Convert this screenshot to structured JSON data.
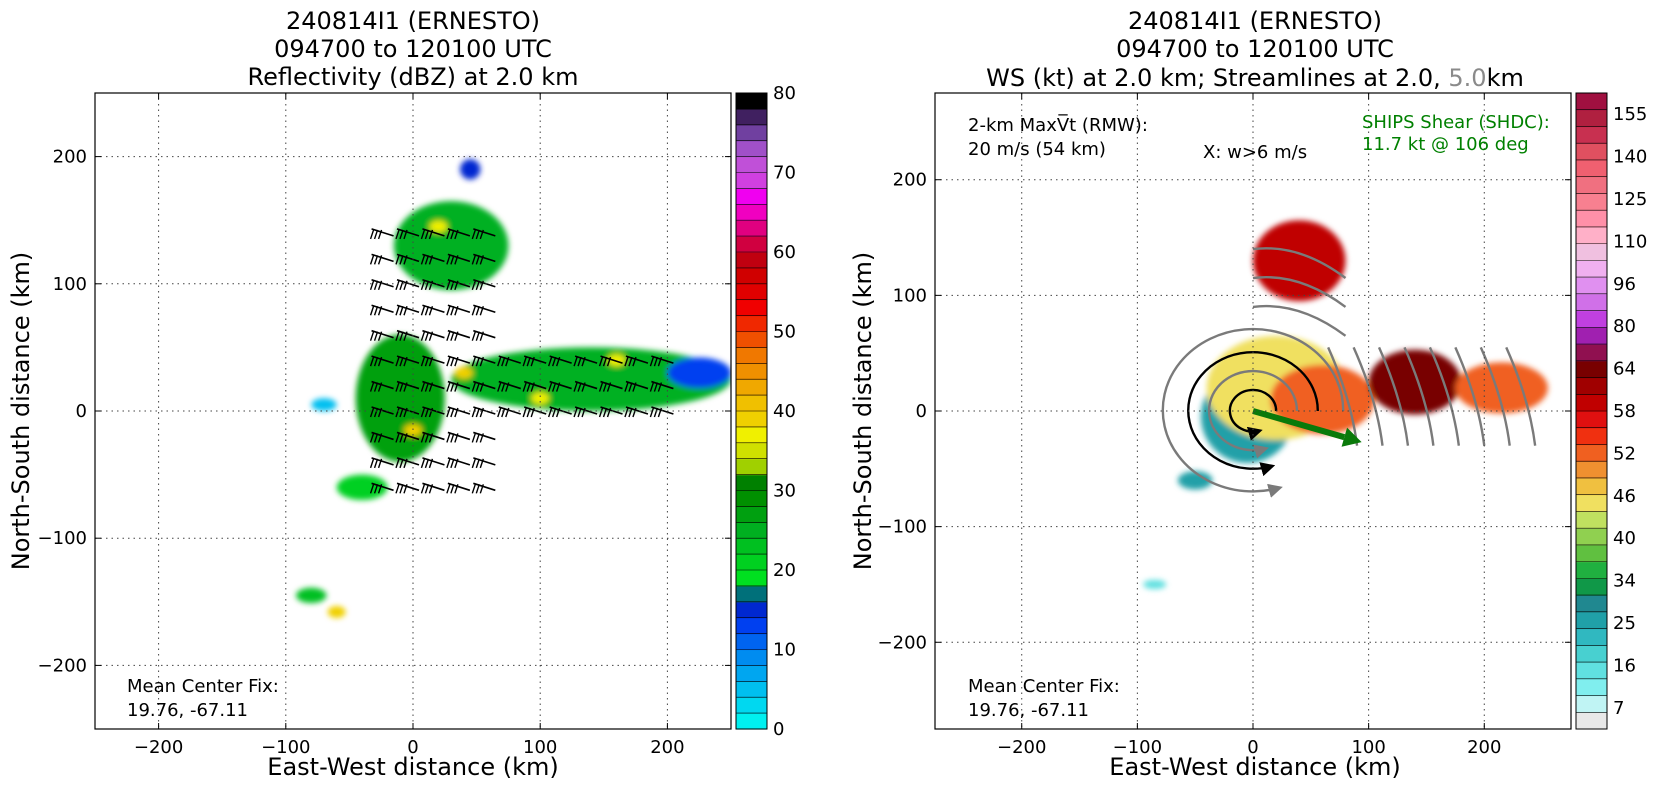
{
  "chart_data": [
    {
      "type": "heatmap",
      "title_lines": [
        "240814I1 (ERNESTO)",
        "094700 to 120100 UTC",
        "Reflectivity (dBZ) at 2.0 km"
      ],
      "xlabel": "East-West distance (km)",
      "ylabel": "North-South distance (km)",
      "xlim": [
        -250,
        250
      ],
      "ylim": [
        -250,
        250
      ],
      "xticks": [
        -200,
        -100,
        0,
        100,
        200
      ],
      "yticks": [
        -200,
        -100,
        0,
        100,
        200
      ],
      "xtick_labels": [
        "−200",
        "−100",
        "0",
        "100",
        "200"
      ],
      "ytick_labels": [
        "−200",
        "−100",
        "0",
        "100",
        "200"
      ],
      "grid": true,
      "annotation": {
        "line1": "Mean Center Fix:",
        "line2": "19.76, -67.11"
      },
      "colorbar": {
        "min": 0,
        "max": 80,
        "ticks": [
          0,
          10,
          20,
          30,
          40,
          50,
          60,
          70,
          80
        ],
        "colors": [
          "#00f0f0",
          "#00d8f0",
          "#00bff0",
          "#00a6f0",
          "#008cf0",
          "#0064f0",
          "#0040f0",
          "#0028d0",
          "#00707a",
          "#00e020",
          "#00d020",
          "#00c020",
          "#00b020",
          "#00a010",
          "#009000",
          "#008000",
          "#a0d000",
          "#d0e000",
          "#f0f000",
          "#f0d000",
          "#f0c000",
          "#f0a800",
          "#f09000",
          "#f07800",
          "#f05000",
          "#f02800",
          "#f00000",
          "#e00000",
          "#d00000",
          "#c00010",
          "#d00040",
          "#e00080",
          "#f000c0",
          "#f000f0",
          "#d040e0",
          "#c050d8",
          "#a050c8",
          "#7040a0",
          "#402060",
          "#000000"
        ]
      },
      "data": {
        "unit": "dBZ",
        "echo_regions": [
          {
            "x": -10,
            "y": 10,
            "rx": 35,
            "ry": 50,
            "dbz": 26
          },
          {
            "x": 30,
            "y": 130,
            "rx": 45,
            "ry": 35,
            "dbz": 24
          },
          {
            "x": 45,
            "y": 190,
            "rx": 8,
            "ry": 8,
            "dbz": 15
          },
          {
            "x": 140,
            "y": 25,
            "rx": 110,
            "ry": 25,
            "dbz": 24
          },
          {
            "x": 225,
            "y": 30,
            "rx": 25,
            "ry": 12,
            "dbz": 12
          },
          {
            "x": -40,
            "y": -60,
            "rx": 20,
            "ry": 10,
            "dbz": 20
          },
          {
            "x": -80,
            "y": -145,
            "rx": 12,
            "ry": 6,
            "dbz": 22
          },
          {
            "x": -70,
            "y": 5,
            "rx": 10,
            "ry": 5,
            "dbz": 5
          }
        ],
        "cores": [
          {
            "x": 40,
            "y": 30,
            "dbz": 38
          },
          {
            "x": 20,
            "y": 145,
            "dbz": 36
          },
          {
            "x": 0,
            "y": -15,
            "dbz": 38
          },
          {
            "x": 100,
            "y": 10,
            "dbz": 36
          },
          {
            "x": 160,
            "y": 40,
            "dbz": 36
          },
          {
            "x": -60,
            "y": -158,
            "dbz": 38
          }
        ]
      }
    },
    {
      "type": "heatmap",
      "title_lines": [
        "240814I1 (ERNESTO)",
        "094700 to 120100 UTC"
      ],
      "title_line3": {
        "part1": "WS (kt) at 2.0 km; Streamlines at 2.0, ",
        "part2": "5.0",
        "part3": "km"
      },
      "xlabel": "East-West distance (km)",
      "ylabel": "North-South distance (km)",
      "xlim": [
        -275,
        275
      ],
      "ylim": [
        -275,
        275
      ],
      "xticks": [
        -200,
        -100,
        0,
        100,
        200
      ],
      "yticks": [
        -200,
        -100,
        0,
        100,
        200
      ],
      "xtick_labels": [
        "−200",
        "−100",
        "0",
        "100",
        "200"
      ],
      "ytick_labels": [
        "−200",
        "−100",
        "0",
        "100",
        "200"
      ],
      "grid": true,
      "annotations": {
        "maxvt_line1": "2-km MaxV̅t (RMW):",
        "maxvt_line2": "20 m/s (54 km)",
        "w_label": "X: w>6 m/s",
        "shear_line1": "SHIPS Shear (SHDC):",
        "shear_line2": "11.7 kt @ 106 deg",
        "center_fix_line1": "Mean Center Fix:",
        "center_fix_line2": "19.76, -67.11"
      },
      "shear_vector": {
        "speed_kt": 11.7,
        "direction_deg": 106
      },
      "colorbar": {
        "ticks": [
          7,
          16,
          25,
          34,
          40,
          46,
          52,
          58,
          64,
          80,
          96,
          110,
          125,
          140,
          155
        ],
        "colors": [
          "#e8e8e8",
          "#c0f4f4",
          "#80eeee",
          "#60e0e0",
          "#48d0d0",
          "#30b8c0",
          "#20a0a8",
          "#208890",
          "#109848",
          "#20b040",
          "#60c040",
          "#90d050",
          "#c0e060",
          "#f0e060",
          "#f0c040",
          "#f09030",
          "#f06020",
          "#f03010",
          "#e01010",
          "#c00000",
          "#a00000",
          "#780000",
          "#901050",
          "#a020b0",
          "#c040e0",
          "#d070e8",
          "#e090f0",
          "#f0b0f0",
          "#f0c0e0",
          "#ffb0c8",
          "#ff90a8",
          "#f88090",
          "#f07080",
          "#f06070",
          "#e05060",
          "#c83050",
          "#b02040",
          "#a01040"
        ]
      },
      "data": {
        "unit": "kt",
        "wind_regions": [
          {
            "x": -5,
            "y": -5,
            "rx": 40,
            "ry": 40,
            "kt": 25
          },
          {
            "x": 20,
            "y": 20,
            "rx": 60,
            "ry": 45,
            "kt": 46
          },
          {
            "x": 60,
            "y": 10,
            "rx": 45,
            "ry": 30,
            "kt": 55
          },
          {
            "x": 40,
            "y": 130,
            "rx": 40,
            "ry": 35,
            "kt": 60
          },
          {
            "x": 140,
            "y": 25,
            "rx": 40,
            "ry": 28,
            "kt": 70
          },
          {
            "x": 215,
            "y": 20,
            "rx": 40,
            "ry": 22,
            "kt": 56
          },
          {
            "x": -50,
            "y": -60,
            "rx": 15,
            "ry": 8,
            "kt": 25
          },
          {
            "x": -85,
            "y": -150,
            "rx": 10,
            "ry": 4,
            "kt": 16
          }
        ]
      }
    }
  ]
}
